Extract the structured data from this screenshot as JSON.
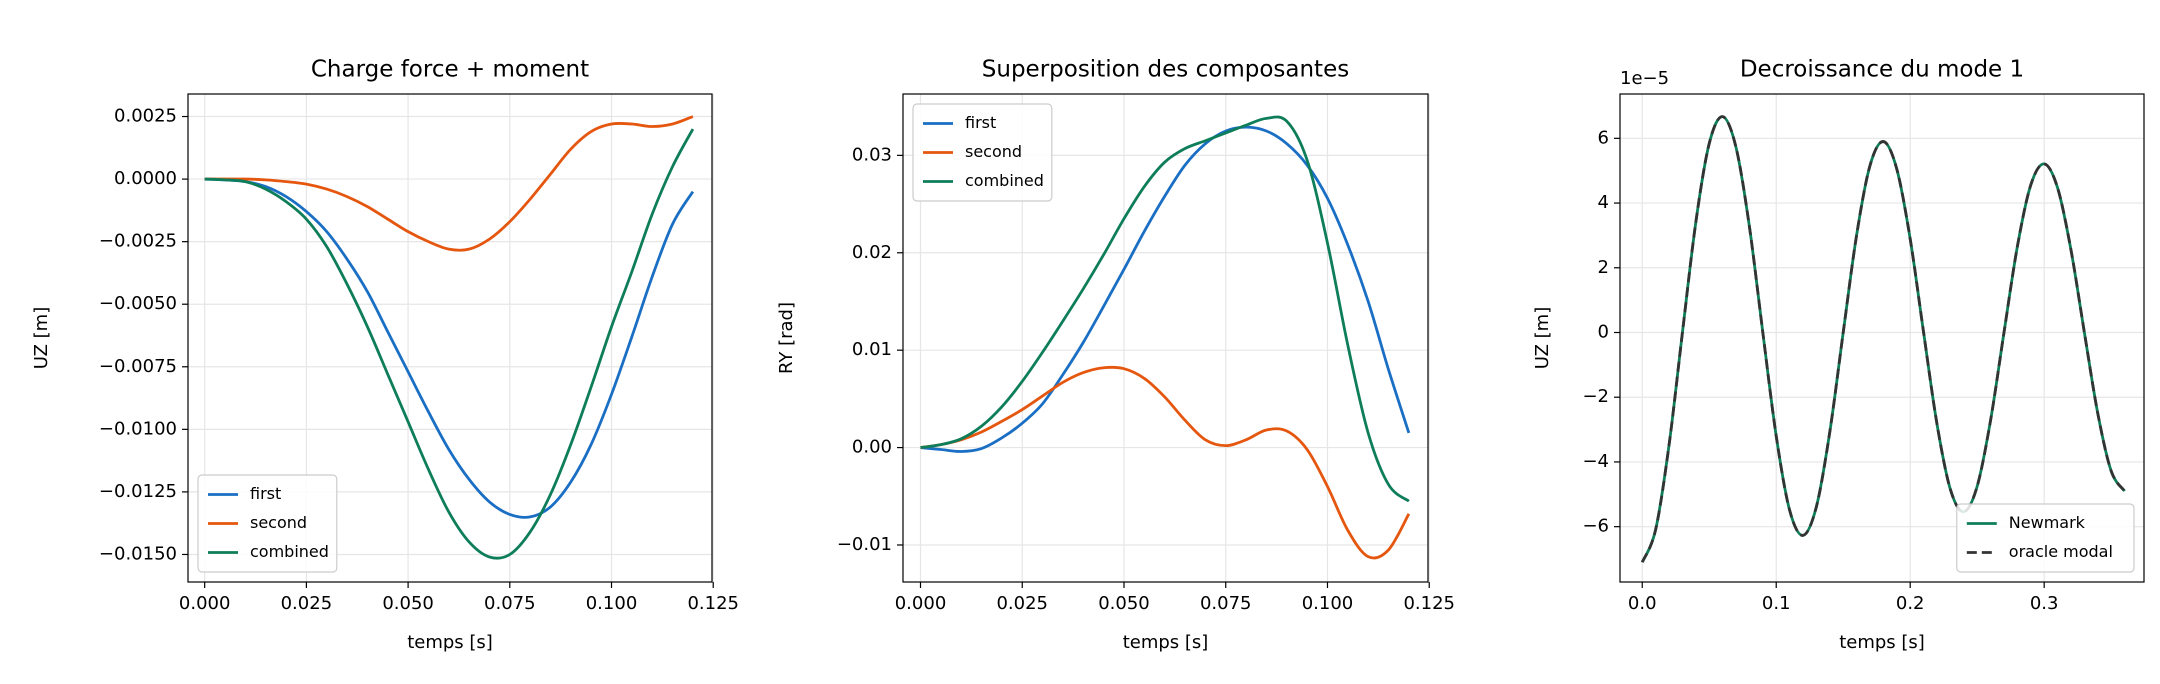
{
  "chart_data": [
    {
      "type": "line",
      "title": "Charge force + moment",
      "xlabel": "temps [s]",
      "ylabel": "UZ [m]",
      "x": [
        0,
        0.005,
        0.01,
        0.015,
        0.02,
        0.025,
        0.03,
        0.035,
        0.04,
        0.045,
        0.05,
        0.055,
        0.06,
        0.065,
        0.07,
        0.075,
        0.08,
        0.085,
        0.09,
        0.095,
        0.1,
        0.105,
        0.11,
        0.115,
        0.12
      ],
      "series": [
        {
          "name": "first",
          "color": "#1a6fc4",
          "values": [
            0,
            -3e-05,
            -0.0001,
            -0.0003,
            -0.0007,
            -0.0013,
            -0.0021,
            -0.0032,
            -0.0045,
            -0.0061,
            -0.0077,
            -0.0093,
            -0.0108,
            -0.012,
            -0.0129,
            -0.0134,
            -0.0135,
            -0.0131,
            -0.0121,
            -0.0106,
            -0.0086,
            -0.0063,
            -0.0039,
            -0.0018,
            -0.0005
          ]
        },
        {
          "name": "second",
          "color": "#e5560e",
          "values": [
            0,
            0,
            0,
            -3e-05,
            -0.0001,
            -0.0002,
            -0.0004,
            -0.0007,
            -0.0011,
            -0.0016,
            -0.0021,
            -0.0025,
            -0.0028,
            -0.0028,
            -0.0024,
            -0.0017,
            -0.0008,
            0.0002,
            0.0012,
            0.0019,
            0.0022,
            0.0022,
            0.0021,
            0.0022,
            0.0025
          ]
        },
        {
          "name": "combined",
          "color": "#0e7d5a",
          "values": [
            0,
            -3e-05,
            -0.0001,
            -0.0004,
            -0.0009,
            -0.0016,
            -0.0027,
            -0.0042,
            -0.0059,
            -0.0078,
            -0.0097,
            -0.0116,
            -0.0133,
            -0.0145,
            -0.0151,
            -0.015,
            -0.0141,
            -0.0126,
            -0.0106,
            -0.0083,
            -0.0059,
            -0.0037,
            -0.0014,
            0.0005,
            0.002
          ]
        }
      ],
      "xlim": [
        -0.0041,
        0.1247
      ],
      "ylim": [
        -0.0161,
        0.0034
      ],
      "xticks": [
        {
          "value": 0,
          "label": "0.000"
        },
        0.025,
        {
          "value": 0.05,
          "label": "0.050"
        },
        0.075,
        {
          "value": 0.1,
          "label": "0.100"
        },
        0.125
      ],
      "yticks": [
        0.0025,
        {
          "value": 0,
          "label": "0.0000"
        },
        {
          "value": -0.0025,
          "label": "−0.0025"
        },
        {
          "value": -0.005,
          "label": "−0.0050"
        },
        {
          "value": -0.0075,
          "label": "−0.0075"
        },
        {
          "value": -0.01,
          "label": "−0.0100"
        },
        {
          "value": -0.0125,
          "label": "−0.0125"
        },
        {
          "value": -0.015,
          "label": "−0.0150"
        }
      ],
      "grid": true,
      "legend": "lower left"
    },
    {
      "type": "line",
      "title": "Superposition des composantes",
      "xlabel": "temps [s]",
      "ylabel": "RY [rad]",
      "x": [
        0,
        0.005,
        0.01,
        0.015,
        0.02,
        0.025,
        0.03,
        0.035,
        0.04,
        0.045,
        0.05,
        0.055,
        0.06,
        0.065,
        0.07,
        0.075,
        0.08,
        0.085,
        0.09,
        0.095,
        0.1,
        0.105,
        0.11,
        0.115,
        0.12
      ],
      "series": [
        {
          "name": "first",
          "color": "#1a6fc4",
          "values": [
            0,
            -0.0002,
            -0.0004,
            -0.0001,
            0.001,
            0.0025,
            0.0045,
            0.0075,
            0.0108,
            0.0145,
            0.0183,
            0.0222,
            0.0258,
            0.029,
            0.0312,
            0.0325,
            0.0329,
            0.0325,
            0.0312,
            0.029,
            0.0256,
            0.0208,
            0.015,
            0.008,
            0.0015
          ]
        },
        {
          "name": "second",
          "color": "#e5560e",
          "values": [
            0,
            0.0003,
            0.0008,
            0.0016,
            0.0027,
            0.0039,
            0.0053,
            0.0067,
            0.0077,
            0.0082,
            0.0081,
            0.0071,
            0.0052,
            0.0028,
            0.0008,
            0.0002,
            0.0008,
            0.0018,
            0.0017,
            -0.0002,
            -0.004,
            -0.0085,
            -0.0112,
            -0.0105,
            -0.0068
          ]
        },
        {
          "name": "combined",
          "color": "#0e7d5a",
          "values": [
            0,
            0.0003,
            0.0009,
            0.0022,
            0.0042,
            0.0068,
            0.0098,
            0.013,
            0.0163,
            0.0198,
            0.0235,
            0.0268,
            0.0293,
            0.0307,
            0.0315,
            0.0323,
            0.0331,
            0.0338,
            0.0335,
            0.0295,
            0.021,
            0.0105,
            0.0015,
            -0.0038,
            -0.0055
          ]
        }
      ],
      "xlim": [
        -0.0043,
        0.1247
      ],
      "ylim": [
        -0.0138,
        0.0363
      ],
      "xticks": [
        {
          "value": 0,
          "label": "0.000"
        },
        0.025,
        {
          "value": 0.05,
          "label": "0.050"
        },
        0.075,
        {
          "value": 0.1,
          "label": "0.100"
        },
        0.125
      ],
      "yticks": [
        0.03,
        0.02,
        0.01,
        {
          "value": 0,
          "label": "0.00"
        },
        {
          "value": -0.01,
          "label": "−0.01"
        }
      ],
      "grid": true,
      "legend": "upper left"
    },
    {
      "type": "line",
      "title": "Decroissance du mode 1",
      "xlabel": "temps [s]",
      "ylabel": "UZ [m]",
      "y_offset_text": "1e−5",
      "x": [
        0,
        0.01,
        0.02,
        0.03,
        0.04,
        0.05,
        0.06,
        0.07,
        0.08,
        0.09,
        0.1,
        0.11,
        0.12,
        0.13,
        0.14,
        0.15,
        0.16,
        0.17,
        0.18,
        0.19,
        0.2,
        0.21,
        0.22,
        0.23,
        0.24,
        0.25,
        0.26,
        0.27,
        0.28,
        0.29,
        0.3,
        0.31,
        0.32,
        0.33,
        0.34,
        0.35,
        0.36
      ],
      "series": [
        {
          "name": "Newmark",
          "color": "#0e7d5a",
          "linestyle": "solid",
          "values": [
            -7.1,
            -6.09,
            -3.48,
            0,
            3.41,
            5.84,
            6.67,
            5.72,
            3.27,
            0,
            -3.2,
            -5.49,
            -6.27,
            -5.38,
            -3.07,
            0,
            3.01,
            5.16,
            5.9,
            5.05,
            2.89,
            0,
            -2.83,
            -4.85,
            -5.54,
            -4.75,
            -2.71,
            0,
            2.66,
            4.56,
            5.21,
            4.47,
            2.55,
            0,
            -2.5,
            -4.28,
            -4.9
          ]
        },
        {
          "name": "oracle modal",
          "color": "#333333",
          "linestyle": "dashed",
          "values": [
            -7.1,
            -6.09,
            -3.48,
            0,
            3.41,
            5.84,
            6.67,
            5.72,
            3.27,
            0,
            -3.2,
            -5.49,
            -6.27,
            -5.38,
            -3.07,
            0,
            3.01,
            5.16,
            5.9,
            5.05,
            2.89,
            0,
            -2.83,
            -4.85,
            -5.54,
            -4.75,
            -2.71,
            0,
            2.66,
            4.56,
            5.21,
            4.47,
            2.55,
            0,
            -2.5,
            -4.28,
            -4.9
          ]
        }
      ],
      "xlim": [
        -0.0166,
        0.3745
      ],
      "ylim": [
        -7.71,
        7.37
      ],
      "xticks": [
        {
          "value": 0,
          "label": "0.0"
        },
        0.1,
        0.2,
        0.3
      ],
      "yticks": [
        6,
        4,
        2,
        0,
        {
          "value": -2,
          "label": "−2"
        },
        {
          "value": -4,
          "label": "−4"
        },
        {
          "value": -6,
          "label": "−6"
        }
      ],
      "grid": true,
      "legend": "lower right"
    }
  ]
}
